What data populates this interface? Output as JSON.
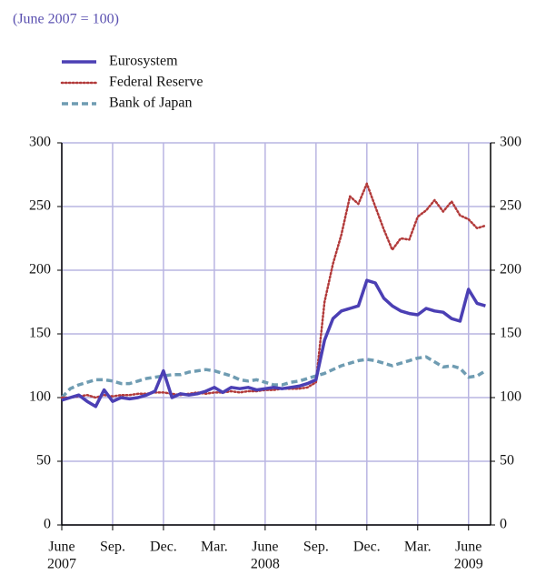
{
  "chart_data": {
    "type": "line",
    "subtitle": "(June 2007 = 100)",
    "x": [
      0,
      0.5,
      1,
      1.5,
      2,
      2.5,
      3,
      3.5,
      4,
      4.5,
      5,
      5.5,
      6,
      6.5,
      7,
      7.5,
      8,
      8.5,
      9,
      9.5,
      10,
      10.5,
      11,
      11.5,
      12,
      12.5,
      13,
      13.5,
      14,
      14.5,
      15,
      15.5,
      16,
      16.5,
      17,
      17.5,
      18,
      18.5,
      19,
      19.5,
      20,
      20.5,
      21,
      21.5,
      22,
      22.5,
      23,
      23.5,
      24,
      24.5,
      25
    ],
    "series": [
      {
        "name": "Eurosystem",
        "color": "#4b3fb4",
        "style": "solid",
        "values": [
          98,
          100,
          102,
          97,
          93,
          106,
          97,
          100,
          99,
          100,
          102,
          105,
          121,
          100,
          103,
          102,
          103,
          105,
          108,
          104,
          108,
          107,
          108,
          106,
          107,
          108,
          107,
          108,
          109,
          111,
          114,
          145,
          162,
          168,
          170,
          172,
          192,
          190,
          178,
          172,
          168,
          166,
          165,
          170,
          168,
          167,
          162,
          160,
          185,
          174,
          172
        ]
      },
      {
        "name": "Federal Reserve",
        "color": "#b23a3a",
        "style": "dotted",
        "values": [
          100,
          100,
          101,
          102,
          100,
          102,
          101,
          102,
          102,
          103,
          103,
          104,
          104,
          103,
          102,
          103,
          104,
          103,
          104,
          104,
          105,
          104,
          105,
          105,
          106,
          106,
          107,
          107,
          107,
          108,
          112,
          175,
          205,
          228,
          258,
          252,
          268,
          250,
          232,
          216,
          225,
          224,
          242,
          247,
          255,
          246,
          254,
          243,
          240,
          233,
          235
        ]
      },
      {
        "name": "Bank of Japan",
        "color": "#6f9cb2",
        "style": "dashed",
        "values": [
          100,
          107,
          110,
          112,
          114,
          114,
          113,
          111,
          111,
          113,
          115,
          116,
          117,
          118,
          118,
          120,
          121,
          122,
          121,
          119,
          117,
          114,
          113,
          114,
          112,
          110,
          110,
          112,
          113,
          115,
          117,
          119,
          122,
          125,
          127,
          129,
          130,
          129,
          127,
          125,
          127,
          129,
          131,
          132,
          128,
          124,
          125,
          123,
          116,
          117,
          121
        ]
      }
    ],
    "xlim": [
      0,
      25.3
    ],
    "xticks": [
      {
        "value": 0,
        "label": "June"
      },
      {
        "value": 3,
        "label": "Sep."
      },
      {
        "value": 6,
        "label": "Dec."
      },
      {
        "value": 9,
        "label": "Mar."
      },
      {
        "value": 12,
        "label": "June"
      },
      {
        "value": 15,
        "label": "Sep."
      },
      {
        "value": 18,
        "label": "Dec."
      },
      {
        "value": 21,
        "label": "Mar."
      },
      {
        "value": 24,
        "label": "June"
      }
    ],
    "year_labels": [
      {
        "value": 0,
        "label": "2007"
      },
      {
        "value": 12,
        "label": "2008"
      },
      {
        "value": 24,
        "label": "2009"
      }
    ],
    "ylim": [
      0,
      300
    ],
    "yticks": [
      0,
      50,
      100,
      150,
      200,
      250,
      300
    ],
    "y2lim": [
      0,
      300
    ],
    "y2ticks": [
      0,
      50,
      100,
      150,
      200,
      250,
      300
    ],
    "grid": true
  }
}
